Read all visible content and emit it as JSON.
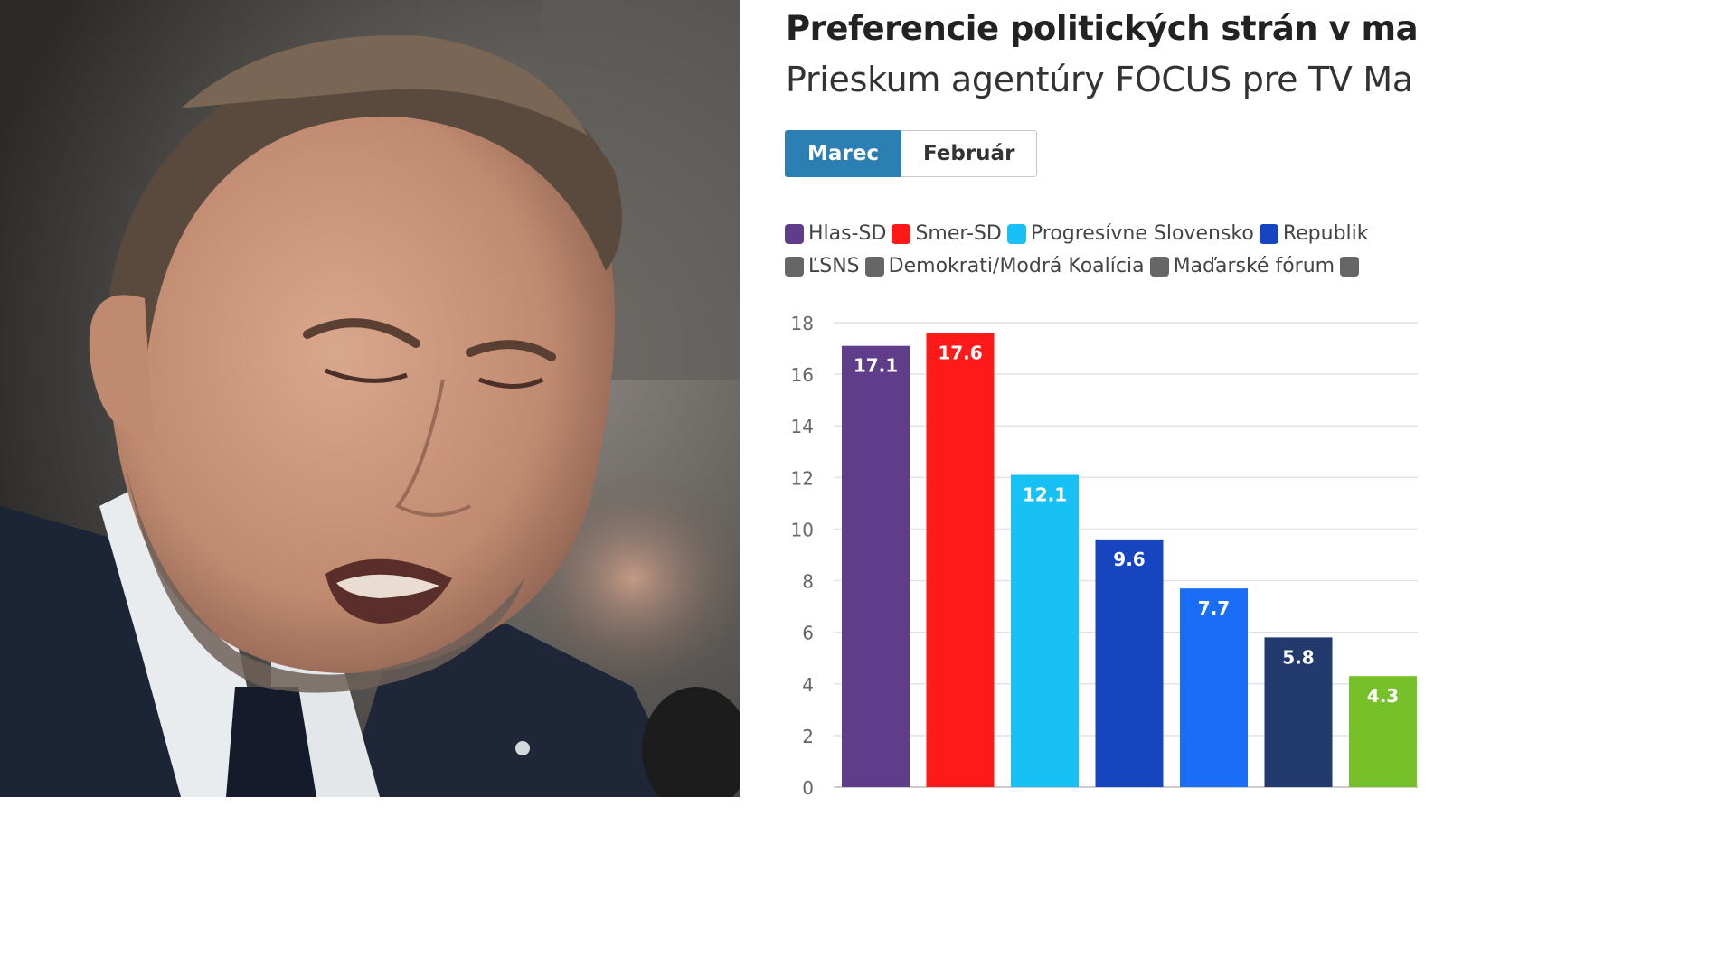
{
  "chart_data": {
    "type": "bar",
    "title": "Preferencie politických strán v mar",
    "subtitle": "Prieskum agentúry FOCUS pre TV Ma",
    "tabs": [
      "Marec",
      "Február"
    ],
    "active_tab": "Marec",
    "legend_rows": [
      [
        {
          "name": "Hlas-SD",
          "color": "#5f3d8a"
        },
        {
          "name": "Smer-SD",
          "color": "#ff1a1a"
        },
        {
          "name": "Progresívne Slovensko",
          "color": "#17c1f5"
        },
        {
          "name": "Republik",
          "color": "#1745c0"
        }
      ],
      [
        {
          "name": "ĽSNS",
          "color": "#666666"
        },
        {
          "name": "Demokrati/Modrá Koalícia",
          "color": "#666666"
        },
        {
          "name": "Maďarské fórum",
          "color": "#666666"
        },
        {
          "name": "",
          "color": "#666666"
        }
      ]
    ],
    "values": [
      17.1,
      17.6,
      12.1,
      9.6,
      7.7,
      5.8,
      4.3
    ],
    "bar_colors": [
      "#5f3d8a",
      "#ff1a1a",
      "#17c1f5",
      "#1745c0",
      "#1a6ef5",
      "#233a6e",
      "#76c02a"
    ],
    "value_labels": [
      "17.1",
      "17.6",
      "12.1",
      "9.6",
      "7.7",
      "5.8",
      "4.3"
    ],
    "yticks": [
      "0",
      "2",
      "4",
      "6",
      "8",
      "10",
      "12",
      "14",
      "16",
      "18"
    ],
    "ylim": [
      0,
      18
    ],
    "grid": true
  }
}
